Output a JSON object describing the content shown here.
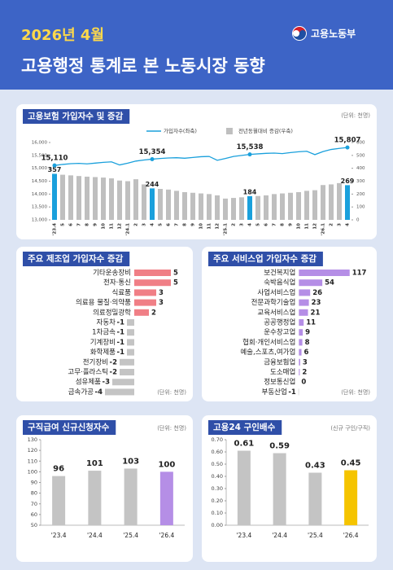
{
  "header": {
    "date": "2026년 4월",
    "title": "고용행정 통계로 본 노동시장 동향",
    "logo": "고용노동부"
  },
  "chart_data": [
    {
      "type": "combo",
      "title": "고용보험 가입자수 및 증감",
      "unit": "(단위: 천명)",
      "categories": [
        "'23.4",
        "5",
        "6",
        "7",
        "8",
        "9",
        "10",
        "11",
        "12",
        "'24.1",
        "2",
        "3",
        "4",
        "5",
        "6",
        "7",
        "8",
        "9",
        "10",
        "11",
        "12",
        "'25.1",
        "2",
        "3",
        "4",
        "5",
        "6",
        "7",
        "8",
        "9",
        "10",
        "11",
        "12",
        "'26.1",
        "2",
        "3",
        "4"
      ],
      "series": [
        {
          "name": "가입자수(좌축)",
          "kind": "line",
          "axis": "y",
          "color": "#1aa0dc",
          "values": [
            15110,
            15150,
            15180,
            15190,
            15170,
            15200,
            15230,
            15250,
            15130,
            15200,
            15280,
            15320,
            15354,
            15380,
            15400,
            15410,
            15390,
            15420,
            15450,
            15460,
            15310,
            15380,
            15460,
            15500,
            15538,
            15560,
            15580,
            15590,
            15570,
            15610,
            15640,
            15660,
            15530,
            15650,
            15730,
            15770,
            15807
          ],
          "value_labels": [
            "15,110",
            null,
            null,
            null,
            null,
            null,
            null,
            null,
            null,
            null,
            null,
            null,
            "15,354",
            null,
            null,
            null,
            null,
            null,
            null,
            null,
            null,
            null,
            null,
            null,
            "15,538",
            null,
            null,
            null,
            null,
            null,
            null,
            null,
            null,
            null,
            null,
            null,
            "15,807"
          ]
        },
        {
          "name": "전년동월대비 증감(우축)",
          "kind": "bar",
          "axis": "y2",
          "color": "#bfbfbf",
          "values": [
            357,
            350,
            345,
            340,
            335,
            332,
            328,
            322,
            305,
            300,
            315,
            275,
            244,
            240,
            235,
            225,
            215,
            210,
            205,
            200,
            190,
            165,
            170,
            175,
            184,
            185,
            190,
            200,
            205,
            210,
            215,
            225,
            230,
            270,
            275,
            285,
            269
          ],
          "value_labels": [
            "357",
            null,
            null,
            null,
            null,
            null,
            null,
            null,
            null,
            null,
            null,
            null,
            "244",
            null,
            null,
            null,
            null,
            null,
            null,
            null,
            null,
            null,
            null,
            null,
            "184",
            null,
            null,
            null,
            null,
            null,
            null,
            null,
            null,
            null,
            null,
            null,
            "269"
          ],
          "colors": [
            "#1aa0dc",
            "#bfbfbf",
            "#bfbfbf",
            "#bfbfbf",
            "#bfbfbf",
            "#bfbfbf",
            "#bfbfbf",
            "#bfbfbf",
            "#bfbfbf",
            "#bfbfbf",
            "#bfbfbf",
            "#bfbfbf",
            "#1aa0dc",
            "#bfbfbf",
            "#bfbfbf",
            "#bfbfbf",
            "#bfbfbf",
            "#bfbfbf",
            "#bfbfbf",
            "#bfbfbf",
            "#bfbfbf",
            "#bfbfbf",
            "#bfbfbf",
            "#bfbfbf",
            "#1aa0dc",
            "#bfbfbf",
            "#bfbfbf",
            "#bfbfbf",
            "#bfbfbf",
            "#bfbfbf",
            "#bfbfbf",
            "#bfbfbf",
            "#bfbfbf",
            "#bfbfbf",
            "#bfbfbf",
            "#bfbfbf",
            "#1aa0dc"
          ]
        }
      ],
      "ylim": [
        13000,
        16000
      ],
      "yticks": [
        {
          "value": 13000,
          "label": "13,000"
        },
        {
          "value": 13500,
          "label": "13,500"
        },
        {
          "value": 14000,
          "label": "14,000"
        },
        {
          "value": 14500,
          "label": "14,500"
        },
        {
          "value": 15000,
          "label": "15,000"
        },
        {
          "value": 15500,
          "label": "15,500"
        },
        {
          "value": 16000,
          "label": "16,000"
        }
      ],
      "y2lim": [
        0,
        600
      ],
      "y2ticks": [
        0,
        100,
        200,
        300,
        400,
        500,
        600
      ],
      "legend": "top"
    },
    {
      "type": "hbar",
      "title": "주요 제조업 가입자수 증감",
      "unit": "(단위: 천명)",
      "categories": [
        "기타운송장비",
        "전자·통신",
        "식료품",
        "의료용 물질·의약품",
        "의료정밀광학",
        "자동차",
        "1차금속",
        "기계장비",
        "화학제품",
        "전기장비",
        "고무·플라스틱",
        "섬유제품",
        "금속가공"
      ],
      "values": [
        5,
        5,
        3,
        3,
        2,
        -1,
        -1,
        -1,
        -1,
        -2,
        -2,
        -3,
        -4
      ],
      "xlim": [
        -6,
        6
      ],
      "color": "#f07f86",
      "negative_color": "#c4c4c4"
    },
    {
      "type": "hbar",
      "title": "주요 서비스업 가입자수 증감",
      "unit": "(단위: 천명)",
      "categories": [
        "보건복지업",
        "숙박음식업",
        "사업서비스업",
        "전문과학기술업",
        "교육서비스업",
        "공공행정업",
        "운수창고업",
        "협회·개인서비스업",
        "예술,스포츠,여가업",
        "금융보험업",
        "도소매업",
        "정보통신업",
        "부동산업"
      ],
      "values": [
        117,
        54,
        26,
        23,
        21,
        11,
        9,
        8,
        6,
        3,
        2,
        0,
        -1
      ],
      "xlim": [
        -10,
        125
      ],
      "color": "#b58ee6",
      "negative_color": "#c4c4c4"
    },
    {
      "type": "bar",
      "title": "구직급여 신규신청자수",
      "unit": "(단위: 천명)",
      "categories": [
        "'23.4",
        "'24.4",
        "'25.4",
        "'26.4"
      ],
      "values": [
        96,
        101,
        103,
        100
      ],
      "colors": [
        "#c4c4c4",
        "#c4c4c4",
        "#c4c4c4",
        "#b58ee6"
      ],
      "ylim": [
        50,
        130
      ],
      "yticks": [
        50,
        60,
        70,
        80,
        90,
        100,
        110,
        120,
        130
      ]
    },
    {
      "type": "bar",
      "title": "고용24 구인배수",
      "unit": "(신규 구인/구직)",
      "categories": [
        "'23.4",
        "'24.4",
        "'25.4",
        "'26.4"
      ],
      "values": [
        0.61,
        0.59,
        0.43,
        0.45
      ],
      "colors": [
        "#c4c4c4",
        "#c4c4c4",
        "#c4c4c4",
        "#f5c400"
      ],
      "ylim": [
        0,
        0.7
      ],
      "yticks": [
        {
          "value": 0,
          "label": "0.00"
        },
        {
          "value": 0.1,
          "label": "0.10"
        },
        {
          "value": 0.2,
          "label": "0.20"
        },
        {
          "value": 0.3,
          "label": "0.30"
        },
        {
          "value": 0.4,
          "label": "0.40"
        },
        {
          "value": 0.5,
          "label": "0.50"
        },
        {
          "value": 0.6,
          "label": "0.60"
        },
        {
          "value": 0.7,
          "label": "0.70"
        }
      ]
    }
  ]
}
